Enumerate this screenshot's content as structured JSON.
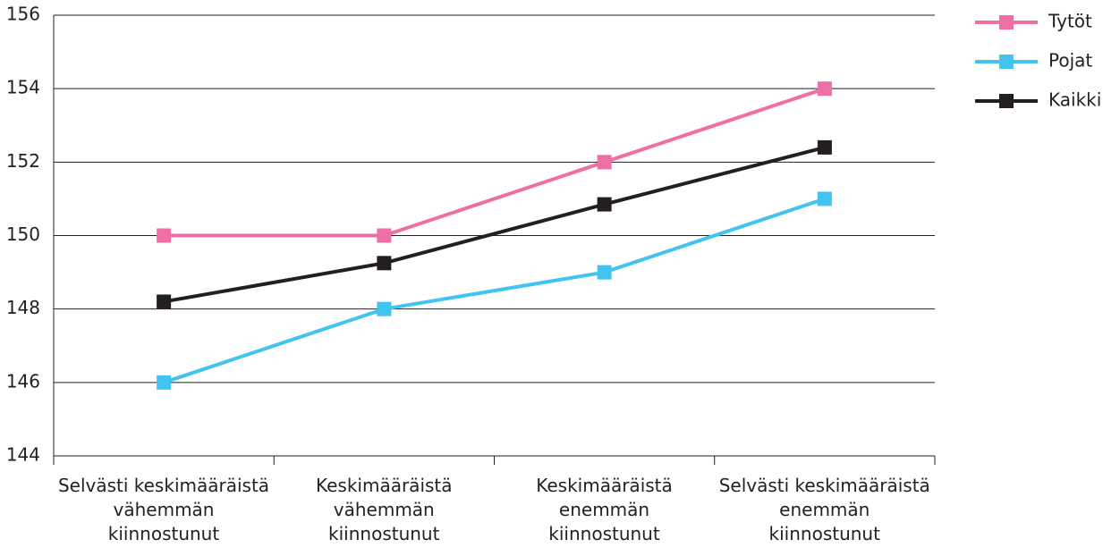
{
  "chart_data": {
    "type": "line",
    "categories": [
      "Selvästi keskimääräistä\nvähemmän\nkiinnostunut",
      "Keskimääräistä\nvähemmän\nkiinnostunut",
      "Keskimääräistä\nenemmän\nkiinnostunut",
      "Selvästi keskimääräistä\nenemmän\nkiinnostunut"
    ],
    "series": [
      {
        "name": "Tytöt",
        "color": "#ef6fa5",
        "values": [
          150,
          150,
          152,
          154
        ]
      },
      {
        "name": "Pojat",
        "color": "#41c4ef",
        "values": [
          146,
          148,
          149,
          151
        ]
      },
      {
        "name": "Kaikki",
        "color": "#231f20",
        "values": [
          148.2,
          149.25,
          150.85,
          152.4
        ]
      }
    ],
    "ylim": [
      144,
      156
    ],
    "yticks": [
      144,
      146,
      148,
      150,
      152,
      154,
      156
    ],
    "grid": true,
    "legend": "right"
  }
}
